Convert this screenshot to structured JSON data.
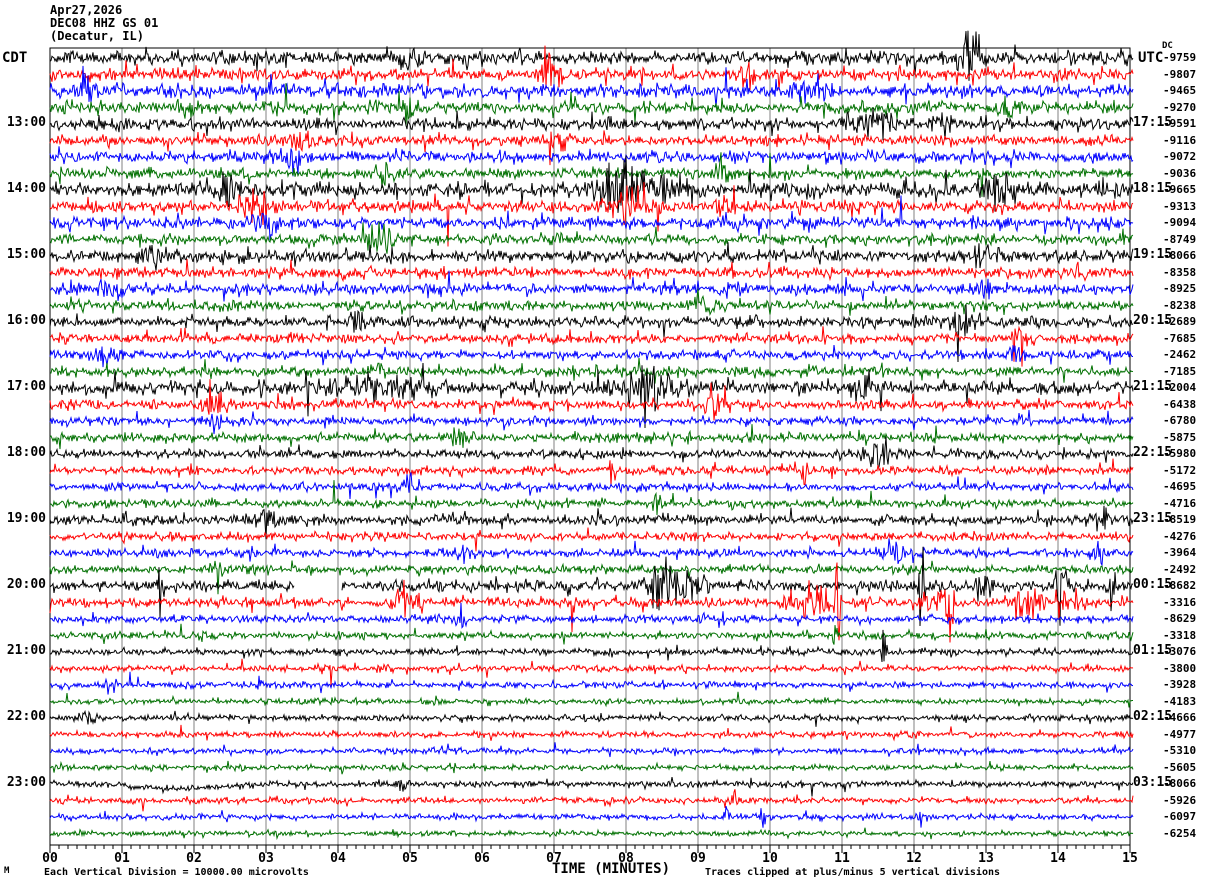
{
  "header": {
    "date": "Apr27,2026",
    "station": "DEC08 HHZ GS 01",
    "location": "(Decatur, IL)"
  },
  "axes": {
    "left_timezone": "CDT",
    "right_timezone": "UTC",
    "dc_column_label": "DC",
    "xlabel": "TIME (MINUTES)",
    "minute_labels": [
      "00",
      "01",
      "02",
      "03",
      "04",
      "05",
      "06",
      "07",
      "08",
      "09",
      "10",
      "11",
      "12",
      "13",
      "14",
      "15"
    ]
  },
  "footer": {
    "scale_note": "Each Vertical Division = 10000.00 microvolts",
    "clip_note": "Traces clipped at plus/minus 5 vertical divisions",
    "logo": "M"
  },
  "chart_data": {
    "type": "line",
    "subtype": "helicorder-seismogram",
    "title": "DEC08 HHZ GS 01 (Decatur, IL) Apr27,2026",
    "xlabel": "TIME (MINUTES)",
    "x_range_minutes": [
      0,
      15
    ],
    "minutes_per_row": 15,
    "rows": 48,
    "grid": true,
    "trace_colors_cycle": [
      "#000000",
      "#ff0000",
      "#0000ff",
      "#007000"
    ],
    "grid_color": "#808080",
    "clip_divisions": 5,
    "microvolts_per_division": "10000.00",
    "traces": [
      {
        "c": 0,
        "dc": "-9759",
        "amp": 4.0,
        "ev": [
          [
            12.8,
            0.25,
            22
          ],
          [
            5.0,
            0.2,
            8
          ]
        ],
        "l": "",
        "r": ""
      },
      {
        "c": 1,
        "dc": "-9807",
        "amp": 3.5,
        "ev": [
          [
            6.9,
            0.12,
            18
          ],
          [
            9.7,
            0.2,
            8
          ]
        ]
      },
      {
        "c": 2,
        "dc": "-9465",
        "amp": 4.0,
        "ev": [
          [
            0.5,
            0.3,
            6
          ],
          [
            10.5,
            0.3,
            6
          ]
        ]
      },
      {
        "c": 3,
        "dc": "-9270",
        "amp": 3.5,
        "ev": [
          [
            1.9,
            0.15,
            10
          ],
          [
            5.0,
            0.12,
            14
          ],
          [
            13.3,
            0.2,
            8
          ]
        ]
      },
      {
        "c": 0,
        "dc": "-9591",
        "amp": 3.5,
        "ev": [
          [
            11.4,
            0.5,
            7
          ],
          [
            12.4,
            0.2,
            8
          ]
        ],
        "l": "13:00",
        "r": "17:15"
      },
      {
        "c": 1,
        "dc": "-9116",
        "amp": 3.0,
        "ev": [
          [
            3.5,
            0.3,
            8
          ],
          [
            7.0,
            0.2,
            6
          ]
        ]
      },
      {
        "c": 2,
        "dc": "-9072",
        "amp": 3.5,
        "ev": [
          [
            3.4,
            0.2,
            9
          ]
        ]
      },
      {
        "c": 3,
        "dc": "-9036",
        "amp": 3.0,
        "ev": [
          [
            4.6,
            0.15,
            10
          ],
          [
            9.3,
            0.2,
            6
          ]
        ]
      },
      {
        "c": 0,
        "dc": "-9665",
        "amp": 4.5,
        "ev": [
          [
            2.45,
            0.12,
            16
          ],
          [
            7.95,
            0.45,
            20
          ],
          [
            8.6,
            0.25,
            16
          ],
          [
            13.2,
            0.25,
            10
          ]
        ],
        "l": "14:00",
        "r": "18:15"
      },
      {
        "c": 1,
        "dc": "-9313",
        "amp": 3.5,
        "ev": [
          [
            2.9,
            0.25,
            14
          ],
          [
            8.1,
            0.4,
            14
          ],
          [
            9.4,
            0.15,
            10
          ]
        ]
      },
      {
        "c": 2,
        "dc": "-9094",
        "amp": 3.5,
        "ev": [
          [
            3.0,
            0.25,
            9
          ]
        ]
      },
      {
        "c": 3,
        "dc": "-8749",
        "amp": 3.0,
        "ev": [
          [
            4.6,
            0.25,
            12
          ]
        ]
      },
      {
        "c": 0,
        "dc": "-8066",
        "amp": 3.5,
        "ev": [
          [
            1.4,
            0.25,
            10
          ],
          [
            12.9,
            0.25,
            7
          ]
        ],
        "l": "15:00",
        "r": "19:15"
      },
      {
        "c": 1,
        "dc": "-8358",
        "amp": 3.0,
        "ev": [
          [
            4.0,
            0.15,
            7
          ],
          [
            14.3,
            0.15,
            8
          ]
        ]
      },
      {
        "c": 2,
        "dc": "-8925",
        "amp": 3.2,
        "ev": [
          [
            0.9,
            0.2,
            6
          ],
          [
            13.0,
            0.2,
            6
          ]
        ]
      },
      {
        "c": 3,
        "dc": "-8238",
        "amp": 2.8,
        "ev": [
          [
            9.0,
            0.2,
            5
          ]
        ]
      },
      {
        "c": 0,
        "dc": "-2689",
        "amp": 3.2,
        "ev": [
          [
            4.3,
            0.15,
            7
          ],
          [
            12.7,
            0.25,
            11
          ]
        ],
        "l": "16:00",
        "r": "20:15"
      },
      {
        "c": 1,
        "dc": "-7685",
        "amp": 2.8,
        "ev": [
          [
            13.5,
            0.2,
            6
          ]
        ]
      },
      {
        "c": 2,
        "dc": "-2462",
        "amp": 2.8,
        "ev": [
          [
            0.8,
            0.25,
            7
          ],
          [
            13.4,
            0.15,
            7
          ]
        ]
      },
      {
        "c": 3,
        "dc": "-7185",
        "amp": 2.8,
        "ev": [
          [
            4.5,
            0.2,
            5
          ]
        ]
      },
      {
        "c": 0,
        "dc": "-2004",
        "amp": 3.8,
        "ev": [
          [
            4.6,
            1.0,
            8
          ],
          [
            8.3,
            0.5,
            13
          ],
          [
            11.3,
            0.25,
            7
          ]
        ],
        "l": "17:00",
        "r": "21:15"
      },
      {
        "c": 1,
        "dc": "-6438",
        "amp": 2.8,
        "ev": [
          [
            9.2,
            0.25,
            13
          ],
          [
            2.3,
            0.2,
            7
          ]
        ]
      },
      {
        "c": 2,
        "dc": "-6780",
        "amp": 2.5,
        "ev": [
          [
            2.3,
            0.1,
            13
          ]
        ]
      },
      {
        "c": 3,
        "dc": "-5875",
        "amp": 2.6,
        "ev": [
          [
            5.7,
            0.15,
            9
          ]
        ]
      },
      {
        "c": 0,
        "dc": "-5980",
        "amp": 2.6,
        "ev": [
          [
            11.5,
            0.25,
            9
          ]
        ],
        "l": "18:00",
        "r": "22:15"
      },
      {
        "c": 1,
        "dc": "-5172",
        "amp": 2.4,
        "ev": [
          [
            7.8,
            0.07,
            10
          ],
          [
            10.5,
            0.07,
            10
          ]
        ]
      },
      {
        "c": 2,
        "dc": "-4695",
        "amp": 2.4,
        "ev": [
          [
            5.0,
            0.15,
            7
          ]
        ]
      },
      {
        "c": 3,
        "dc": "-4716",
        "amp": 2.4,
        "ev": [
          [
            8.4,
            0.15,
            7
          ]
        ]
      },
      {
        "c": 0,
        "dc": "-8519",
        "amp": 2.8,
        "ev": [
          [
            3.0,
            0.25,
            7
          ],
          [
            14.6,
            0.15,
            9
          ]
        ],
        "l": "19:00",
        "r": "23:15"
      },
      {
        "c": 1,
        "dc": "-4276",
        "amp": 2.4,
        "ev": [
          [
            1.0,
            0.15,
            5
          ]
        ]
      },
      {
        "c": 2,
        "dc": "-3964",
        "amp": 2.4,
        "ev": [
          [
            5.7,
            0.15,
            7
          ],
          [
            11.7,
            0.25,
            7
          ],
          [
            14.6,
            0.15,
            7
          ]
        ]
      },
      {
        "c": 3,
        "dc": "-2492",
        "amp": 2.4,
        "ev": [
          [
            2.3,
            0.15,
            7
          ]
        ]
      },
      {
        "c": 0,
        "dc": "-8682",
        "amp": 3.2,
        "ev": [
          [
            1.55,
            0.06,
            20
          ],
          [
            8.55,
            0.35,
            16
          ],
          [
            9.0,
            0.2,
            13
          ],
          [
            12.1,
            0.07,
            32
          ],
          [
            12.95,
            0.1,
            10
          ],
          [
            14.05,
            0.1,
            28
          ],
          [
            14.75,
            0.1,
            12
          ]
        ],
        "gap": [
          3.4,
          4.05
        ],
        "l": "20:00",
        "r": "00:15"
      },
      {
        "c": 1,
        "dc": "-3316",
        "amp": 2.8,
        "ev": [
          [
            4.85,
            0.15,
            9
          ],
          [
            10.95,
            0.06,
            32
          ],
          [
            10.6,
            0.35,
            12
          ],
          [
            12.5,
            0.07,
            32
          ],
          [
            12.3,
            0.25,
            12
          ],
          [
            13.6,
            0.25,
            10
          ],
          [
            14.2,
            0.2,
            8
          ],
          [
            5.0,
            0.2,
            7
          ]
        ]
      },
      {
        "c": 2,
        "dc": "-8629",
        "amp": 2.2,
        "ev": [
          [
            5.7,
            0.1,
            9
          ],
          [
            9.3,
            0.1,
            5
          ]
        ]
      },
      {
        "c": 3,
        "dc": "-3318",
        "amp": 2.2,
        "ev": [
          [
            10.9,
            0.07,
            11
          ]
        ]
      },
      {
        "c": 0,
        "dc": "-3076",
        "amp": 2.0,
        "ev": [
          [
            11.6,
            0.06,
            11
          ]
        ],
        "l": "21:00",
        "r": "01:15"
      },
      {
        "c": 1,
        "dc": "-3800",
        "amp": 1.9,
        "ev": [
          [
            3.8,
            0.15,
            5
          ],
          [
            4.7,
            0.15,
            5
          ]
        ]
      },
      {
        "c": 2,
        "dc": "-3928",
        "amp": 1.9,
        "ev": []
      },
      {
        "c": 3,
        "dc": "-4183",
        "amp": 1.7,
        "ev": []
      },
      {
        "c": 0,
        "dc": "-4666",
        "amp": 1.9,
        "ev": [
          [
            0.5,
            0.2,
            3
          ]
        ],
        "l": "22:00",
        "r": "02:15"
      },
      {
        "c": 1,
        "dc": "-4977",
        "amp": 1.7,
        "ev": []
      },
      {
        "c": 2,
        "dc": "-5310",
        "amp": 1.7,
        "ev": []
      },
      {
        "c": 3,
        "dc": "-5605",
        "amp": 1.6,
        "ev": []
      },
      {
        "c": 0,
        "dc": "-8066",
        "amp": 1.9,
        "ev": [
          [
            4.9,
            0.1,
            4
          ]
        ],
        "drift": [
          1.8,
          1.1,
          5
        ],
        "l": "23:00",
        "r": "03:15"
      },
      {
        "c": 1,
        "dc": "-5926",
        "amp": 1.7,
        "ev": [
          [
            9.5,
            0.1,
            4
          ]
        ]
      },
      {
        "c": 2,
        "dc": "-6097",
        "amp": 1.7,
        "ev": [
          [
            9.4,
            0.06,
            8
          ],
          [
            9.9,
            0.06,
            8
          ],
          [
            12.1,
            0.06,
            8
          ]
        ]
      },
      {
        "c": 3,
        "dc": "-6254",
        "amp": 1.5,
        "ev": []
      }
    ]
  }
}
